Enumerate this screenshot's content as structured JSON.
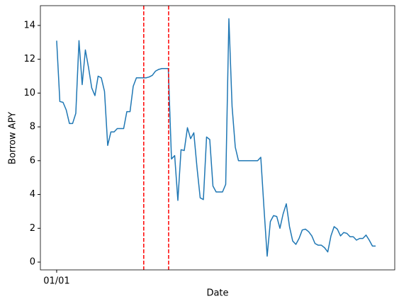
{
  "chart_data": {
    "type": "line",
    "x_label": "Date",
    "y_label": "Borrow APY",
    "x": [
      0,
      1,
      2,
      3,
      4,
      5,
      6,
      7,
      8,
      9,
      10,
      11,
      12,
      13,
      14,
      15,
      16,
      17,
      18,
      19,
      20,
      21,
      22,
      23,
      24,
      25,
      26,
      27,
      28,
      29,
      30,
      31,
      32,
      33,
      34,
      35,
      36,
      37,
      38,
      39,
      40,
      41,
      42,
      43,
      44,
      45,
      46,
      47,
      48,
      49,
      50,
      51,
      52,
      53,
      54,
      55,
      56,
      57,
      58,
      59,
      60,
      61,
      62,
      63,
      64,
      65,
      66,
      67,
      68,
      69,
      70,
      71,
      72,
      73,
      74,
      75,
      76,
      77,
      78,
      79,
      80,
      81,
      82,
      83,
      84,
      85,
      86,
      87,
      88,
      89,
      90,
      91,
      92,
      93,
      94,
      95,
      96,
      97,
      98,
      99,
      100
    ],
    "series": [
      {
        "name": "Borrow APY",
        "color": "#1f77b4",
        "values": [
          13.1,
          9.5,
          9.45,
          9.0,
          8.2,
          8.2,
          8.8,
          13.1,
          10.5,
          12.55,
          11.5,
          10.3,
          9.85,
          11.0,
          10.9,
          10.1,
          6.9,
          7.7,
          7.7,
          7.9,
          7.9,
          7.9,
          8.9,
          8.9,
          10.4,
          10.9,
          10.9,
          10.9,
          10.9,
          10.95,
          11.05,
          11.3,
          11.4,
          11.45,
          11.45,
          11.45,
          6.1,
          6.3,
          3.65,
          6.65,
          6.6,
          7.95,
          7.3,
          7.65,
          5.6,
          3.8,
          3.7,
          7.4,
          7.25,
          4.5,
          4.15,
          4.15,
          4.15,
          4.6,
          14.4,
          9.2,
          6.8,
          6.0,
          6.0,
          6.0,
          6.0,
          6.0,
          6.0,
          6.0,
          6.2,
          3.2,
          0.35,
          2.4,
          2.75,
          2.7,
          2.0,
          2.85,
          3.45,
          2.1,
          1.25,
          1.05,
          1.4,
          1.9,
          1.95,
          1.8,
          1.55,
          1.1,
          1.0,
          1.0,
          0.85,
          0.6,
          1.55,
          2.1,
          1.95,
          1.55,
          1.75,
          1.7,
          1.5,
          1.5,
          1.3,
          1.4,
          1.4,
          1.6,
          1.3,
          0.95,
          0.95
        ]
      }
    ],
    "vlines": [
      27.3,
      35.1
    ],
    "vline_color": "#ff0000",
    "xlim": [
      -5.1,
      106.0
    ],
    "xticks": [
      {
        "value": 0,
        "label": "01/01"
      }
    ],
    "ylim": [
      -0.46,
      15.17
    ],
    "yticks": [
      0,
      2,
      4,
      6,
      8,
      10,
      12,
      14
    ]
  }
}
